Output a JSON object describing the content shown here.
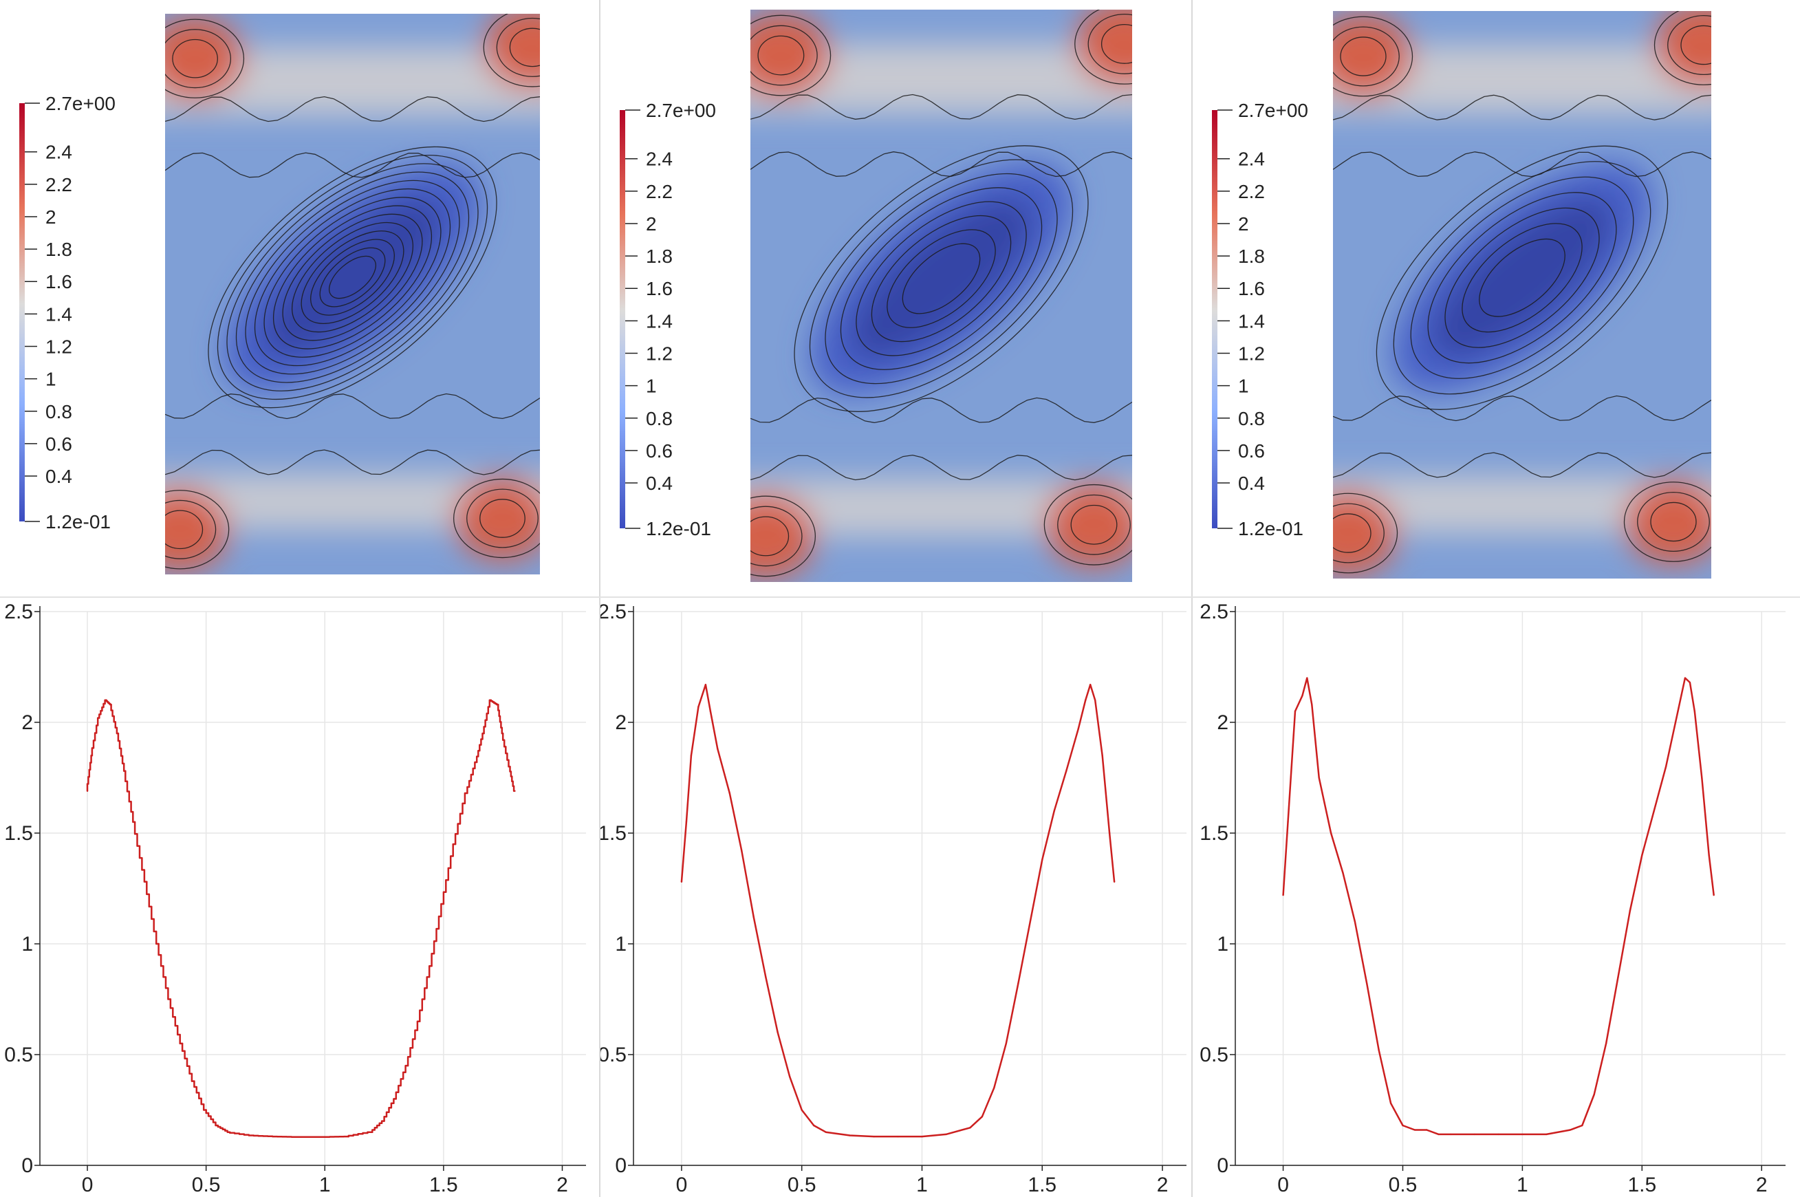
{
  "colors": {
    "line": "#cc1f1f",
    "grid": "#e6e6e6",
    "axis": "#222222",
    "cmap_low": "#3b4cc0",
    "cmap_mid": "#dddcdb",
    "cmap_high": "#b40426",
    "contour": "#1a1a1a"
  },
  "colorbar": {
    "max_label": "2.7e+00",
    "min_label": "1.2e-01",
    "tick_labels": [
      "2.4",
      "2.2",
      "2",
      "1.8",
      "1.6",
      "1.4",
      "1.2",
      "1",
      "0.8",
      "0.6",
      "0.4"
    ],
    "tick_values": [
      2.4,
      2.2,
      2.0,
      1.8,
      1.6,
      1.4,
      1.2,
      1.0,
      0.8,
      0.6,
      0.4
    ],
    "range": [
      0.12,
      2.7
    ]
  },
  "fields": [
    {
      "name": "field-1",
      "contour_count": 14,
      "variant": "smooth"
    },
    {
      "name": "field-2",
      "contour_count": 8,
      "variant": "sharp"
    },
    {
      "name": "field-3",
      "contour_count": 7,
      "variant": "sharper"
    }
  ],
  "chart_data": [
    {
      "type": "line",
      "xlim": [
        -0.2,
        2.1
      ],
      "ylim": [
        0,
        2.5
      ],
      "x_ticks": [
        0,
        0.5,
        1,
        1.5,
        2
      ],
      "x_tick_labels": [
        "0",
        "0.5",
        "1",
        "1.5",
        "2"
      ],
      "y_ticks": [
        0,
        0.5,
        1,
        1.5,
        2,
        2.5
      ],
      "y_tick_labels": [
        "0",
        "0.5",
        "1",
        "1.5",
        "2",
        "2.5"
      ],
      "grid": true,
      "step": true,
      "x": [
        0,
        0.02,
        0.05,
        0.08,
        0.1,
        0.13,
        0.16,
        0.2,
        0.25,
        0.3,
        0.35,
        0.4,
        0.45,
        0.5,
        0.55,
        0.6,
        0.7,
        0.8,
        0.9,
        1.0,
        1.1,
        1.2,
        1.25,
        1.3,
        1.35,
        1.4,
        1.45,
        1.5,
        1.55,
        1.6,
        1.64,
        1.67,
        1.7,
        1.73,
        1.75,
        1.78,
        1.8
      ],
      "y": [
        1.69,
        1.85,
        2.02,
        2.1,
        2.08,
        1.95,
        1.78,
        1.55,
        1.28,
        1.0,
        0.75,
        0.55,
        0.38,
        0.25,
        0.18,
        0.15,
        0.135,
        0.13,
        0.128,
        0.128,
        0.13,
        0.15,
        0.2,
        0.3,
        0.45,
        0.65,
        0.9,
        1.18,
        1.45,
        1.68,
        1.82,
        1.95,
        2.1,
        2.08,
        1.95,
        1.8,
        1.69
      ]
    },
    {
      "type": "line",
      "xlim": [
        -0.2,
        2.1
      ],
      "ylim": [
        0,
        2.5
      ],
      "x_ticks": [
        0,
        0.5,
        1,
        1.5,
        2
      ],
      "x_tick_labels": [
        "0",
        "0.5",
        "1",
        "1.5",
        "2"
      ],
      "y_ticks": [
        0,
        0.5,
        1,
        1.5,
        2,
        2.5
      ],
      "y_tick_labels": [
        "0",
        "0.5",
        "1",
        "1.5",
        "2",
        "2.5"
      ],
      "grid": true,
      "step": false,
      "x": [
        0,
        0.02,
        0.04,
        0.07,
        0.1,
        0.12,
        0.15,
        0.2,
        0.25,
        0.3,
        0.35,
        0.4,
        0.45,
        0.5,
        0.55,
        0.6,
        0.7,
        0.8,
        0.9,
        1.0,
        1.1,
        1.2,
        1.25,
        1.3,
        1.35,
        1.4,
        1.45,
        1.5,
        1.55,
        1.6,
        1.65,
        1.68,
        1.7,
        1.72,
        1.75,
        1.78,
        1.8
      ],
      "y": [
        1.28,
        1.55,
        1.85,
        2.07,
        2.17,
        2.05,
        1.88,
        1.68,
        1.42,
        1.12,
        0.85,
        0.6,
        0.4,
        0.25,
        0.18,
        0.15,
        0.135,
        0.13,
        0.13,
        0.13,
        0.14,
        0.17,
        0.22,
        0.35,
        0.55,
        0.82,
        1.1,
        1.38,
        1.6,
        1.78,
        1.97,
        2.1,
        2.17,
        2.1,
        1.85,
        1.5,
        1.28
      ]
    },
    {
      "type": "line",
      "xlim": [
        -0.2,
        2.1
      ],
      "ylim": [
        0,
        2.5
      ],
      "x_ticks": [
        0,
        0.5,
        1,
        1.5,
        2
      ],
      "x_tick_labels": [
        "0",
        "0.5",
        "1",
        "1.5",
        "2"
      ],
      "y_ticks": [
        0,
        0.5,
        1,
        1.5,
        2,
        2.5
      ],
      "y_tick_labels": [
        "0",
        "0.5",
        "1",
        "1.5",
        "2",
        "2.5"
      ],
      "grid": true,
      "step": false,
      "x": [
        0,
        0.02,
        0.05,
        0.08,
        0.1,
        0.12,
        0.15,
        0.2,
        0.25,
        0.3,
        0.35,
        0.4,
        0.45,
        0.5,
        0.55,
        0.6,
        0.65,
        0.7,
        0.8,
        0.9,
        1.0,
        1.1,
        1.2,
        1.25,
        1.3,
        1.35,
        1.4,
        1.45,
        1.5,
        1.55,
        1.6,
        1.65,
        1.68,
        1.7,
        1.72,
        1.75,
        1.78,
        1.8
      ],
      "y": [
        1.22,
        1.55,
        2.05,
        2.12,
        2.2,
        2.08,
        1.75,
        1.5,
        1.32,
        1.1,
        0.82,
        0.52,
        0.28,
        0.18,
        0.16,
        0.16,
        0.14,
        0.14,
        0.14,
        0.14,
        0.14,
        0.14,
        0.16,
        0.18,
        0.32,
        0.55,
        0.85,
        1.15,
        1.4,
        1.6,
        1.8,
        2.05,
        2.2,
        2.18,
        2.05,
        1.75,
        1.4,
        1.22
      ]
    }
  ]
}
